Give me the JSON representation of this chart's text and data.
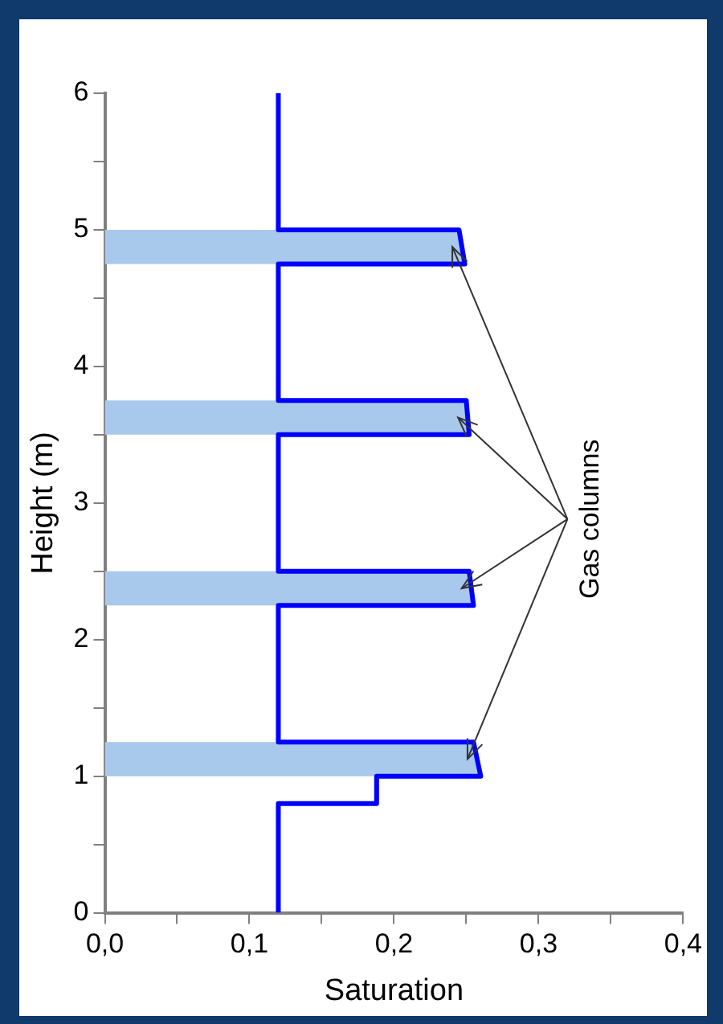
{
  "chart_data": {
    "type": "line",
    "xlabel": "Saturation",
    "ylabel": "Height (m)",
    "annotations": [
      "Gas columns"
    ],
    "xlim": [
      0,
      0.4
    ],
    "xticks": [
      {
        "value": 0,
        "label": "0,0"
      },
      {
        "value": 0.05,
        "label": null
      },
      {
        "value": 0.1,
        "label": "0,1"
      },
      {
        "value": 0.15,
        "label": null
      },
      {
        "value": 0.2,
        "label": "0,2"
      },
      {
        "value": 0.25,
        "label": null
      },
      {
        "value": 0.3,
        "label": "0,3"
      },
      {
        "value": 0.35,
        "label": null
      },
      {
        "value": 0.4,
        "label": "0,4"
      }
    ],
    "ylim": [
      0,
      6
    ],
    "yticks": [
      0,
      {
        "value": 0.5,
        "label": null
      },
      1,
      {
        "value": 1.5,
        "label": null
      },
      2,
      {
        "value": 2.5,
        "label": null
      },
      3,
      {
        "value": 3.5,
        "label": null
      },
      4,
      {
        "value": 4.5,
        "label": null
      },
      5,
      {
        "value": 5.5,
        "label": null
      },
      6
    ],
    "grid": false,
    "legend": false,
    "marker": "none",
    "line_style": "solid",
    "series": [
      {
        "type": "area",
        "color": "#a8c8ec",
        "x": [
          0,
          0.26,
          0.255,
          0,
          0,
          0.255,
          0.252,
          0,
          0,
          0.252,
          0.25,
          0,
          0,
          0.249,
          0.245,
          0
        ],
        "values": [
          1.0,
          1.0,
          1.25,
          1.25,
          2.25,
          2.25,
          2.5,
          2.5,
          3.5,
          3.5,
          3.75,
          3.75,
          4.75,
          4.75,
          5.0,
          5.0
        ]
      },
      {
        "type": "line",
        "color": "#0000ff",
        "x": [
          0.12,
          0.12,
          0.188,
          0.188,
          0.26,
          0.255,
          0.12,
          0.12,
          0.255,
          0.252,
          0.12,
          0.12,
          0.252,
          0.25,
          0.12,
          0.12,
          0.249,
          0.245,
          0.12,
          0.12
        ],
        "values": [
          0,
          0.8,
          0.8,
          1.0,
          1.0,
          1.25,
          1.25,
          2.25,
          2.25,
          2.5,
          2.5,
          3.5,
          3.5,
          3.75,
          3.75,
          4.75,
          4.75,
          5.0,
          5.0,
          6
        ]
      }
    ]
  }
}
